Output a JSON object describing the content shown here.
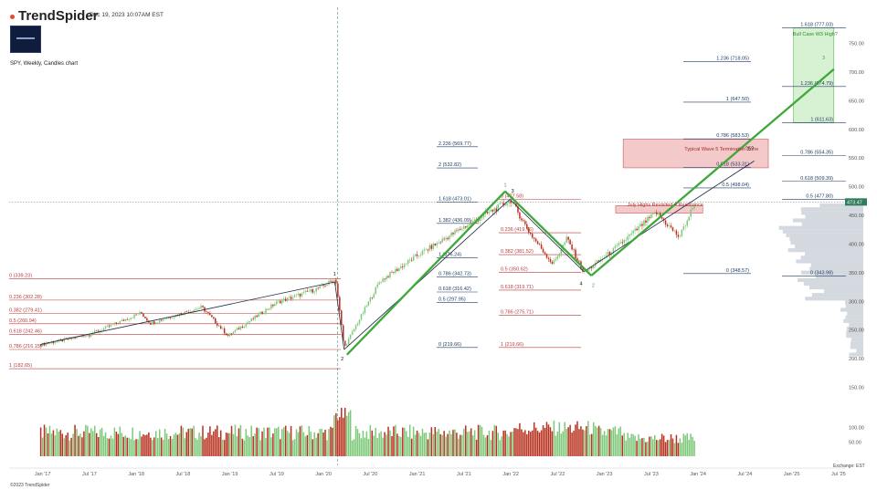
{
  "header": {
    "brand": "TrendSpider",
    "timestamp": "Dec 19, 2023 10:07AM EST",
    "symbol_line": "SPY, Weekly, Candles chart",
    "footer": "©2023 TrendSpider",
    "exchange": "Exchange: EST"
  },
  "colors": {
    "up": "#7ec879",
    "down": "#b8301e",
    "fib_red": "#b83a3a",
    "fib_blue": "#1f3b63",
    "wave": "#3ea83a",
    "zone_red": "#f2c4c4",
    "zone_green": "#d3f0cf",
    "profile": "#d4d9df"
  },
  "chart_data": {
    "type": "candlestick",
    "title": "",
    "x_ticks": [
      "Jan '17",
      "Jul '17",
      "Jan '18",
      "Jul '18",
      "Jan '19",
      "Jul '19",
      "Jan '20",
      "Jul '20",
      "Jan '21",
      "Jul '21",
      "Jan '22",
      "Jul '22",
      "Jan '23",
      "Jul '23",
      "Jan '24",
      "Jul '24",
      "Jan '25",
      "Jul '25"
    ],
    "y_ticks": [
      750,
      700,
      650,
      600,
      550,
      500,
      450,
      400,
      350,
      300,
      250,
      200,
      150
    ],
    "volume_ticks": [
      100,
      50
    ],
    "ylim": [
      175,
      778
    ],
    "last_price": "473.47",
    "price_path": [
      {
        "x": 2017.0,
        "y": 225
      },
      {
        "x": 2017.5,
        "y": 242
      },
      {
        "x": 2018.05,
        "y": 280
      },
      {
        "x": 2018.15,
        "y": 262
      },
      {
        "x": 2018.7,
        "y": 290
      },
      {
        "x": 2018.98,
        "y": 240
      },
      {
        "x": 2019.5,
        "y": 298
      },
      {
        "x": 2019.95,
        "y": 323
      },
      {
        "x": 2020.13,
        "y": 339
      },
      {
        "x": 2020.22,
        "y": 219
      },
      {
        "x": 2020.6,
        "y": 335
      },
      {
        "x": 2021.0,
        "y": 380
      },
      {
        "x": 2021.5,
        "y": 430
      },
      {
        "x": 2022.0,
        "y": 477
      },
      {
        "x": 2022.2,
        "y": 420
      },
      {
        "x": 2022.45,
        "y": 365
      },
      {
        "x": 2022.6,
        "y": 410
      },
      {
        "x": 2022.78,
        "y": 350
      },
      {
        "x": 2023.1,
        "y": 390
      },
      {
        "x": 2023.55,
        "y": 455
      },
      {
        "x": 2023.8,
        "y": 412
      },
      {
        "x": 2023.97,
        "y": 473
      }
    ],
    "fib_sets": [
      {
        "levels": [
          {
            "label": "0 (339.23)",
            "value": 339.23
          },
          {
            "label": "0.236 (302.28)",
            "value": 302.28
          },
          {
            "label": "0.382 (279.41)",
            "value": 279.41
          },
          {
            "label": "0.5 (260.94)",
            "value": 260.94
          },
          {
            "label": "0.618 (242.46)",
            "value": 242.46
          },
          {
            "label": "0.786 (216.15)",
            "value": 216.15
          },
          {
            "label": "1 (182.65)",
            "value": 182.65
          }
        ]
      },
      {
        "levels": [
          {
            "label": "2.236 (569.77)",
            "value": 569.77
          },
          {
            "label": "2 (532.82)",
            "value": 532.82
          },
          {
            "label": "1.618 (473.01)",
            "value": 473.01
          },
          {
            "label": "1.382 (436.09)",
            "value": 436.09
          },
          {
            "label": "1 (376.24)",
            "value": 376.24
          },
          {
            "label": "0.786 (342.73)",
            "value": 342.73
          },
          {
            "label": "0.618 (316.42)",
            "value": 316.42
          },
          {
            "label": "0.5 (297.95)",
            "value": 297.95
          },
          {
            "label": "0 (219.66)",
            "value": 219.66
          }
        ]
      },
      {
        "levels": [
          {
            "label": "0 (477.58)",
            "value": 477.58
          },
          {
            "label": "0.236 (419.76)",
            "value": 419.76
          },
          {
            "label": "0.382 (381.52)",
            "value": 381.52
          },
          {
            "label": "0.5 (350.62)",
            "value": 350.62
          },
          {
            "label": "0.618 (319.71)",
            "value": 319.71
          },
          {
            "label": "0.786 (275.71)",
            "value": 275.71
          },
          {
            "label": "1 (219.66)",
            "value": 219.66
          }
        ]
      },
      {
        "levels": [
          {
            "label": "1.236 (718.05)",
            "value": 718.05
          },
          {
            "label": "1 (647.50)",
            "value": 647.5
          },
          {
            "label": "0.786 (583.53)",
            "value": 583.53
          },
          {
            "label": "0.618 (533.31)",
            "value": 533.31
          },
          {
            "label": "0.5 (498.04)",
            "value": 498.04
          },
          {
            "label": "0 (348.57)",
            "value": 348.57
          }
        ]
      },
      {
        "levels": [
          {
            "label": "1.618 (777.03)",
            "value": 777.03
          },
          {
            "label": "1.236 (674.79)",
            "value": 674.79
          },
          {
            "label": "1 (611.63)",
            "value": 611.63
          },
          {
            "label": "0.786 (554.35)",
            "value": 554.35
          },
          {
            "label": "0.618 (509.39)",
            "value": 509.39
          },
          {
            "label": "0.5 (477.80)",
            "value": 477.8
          },
          {
            "label": "0 (343.98)",
            "value": 343.98
          }
        ]
      }
    ],
    "wave_labels": [
      {
        "text": "1",
        "x": 2020.12,
        "y": 345
      },
      {
        "text": "2",
        "x": 2020.2,
        "y": 197
      },
      {
        "text": "1",
        "x": 2021.94,
        "y": 500
      },
      {
        "text": "3",
        "x": 2022.02,
        "y": 490
      },
      {
        "text": "4",
        "x": 2022.75,
        "y": 328
      },
      {
        "text": "2",
        "x": 2022.88,
        "y": 325
      },
      {
        "text": "?5?",
        "x": 2024.55,
        "y": 564
      },
      {
        "text": "3",
        "x": 2025.34,
        "y": 722
      }
    ],
    "annotations": [
      {
        "text": "Typical Wave 5 Termination Zone",
        "x": 2024.25,
        "y": 563
      },
      {
        "text": "July Highs Revisited = Resistance",
        "x": 2023.65,
        "y": 466
      },
      {
        "text": "Bull Case W3 High?",
        "x": 2025.25,
        "y": 764
      }
    ],
    "zones": [
      {
        "name": "wave5-zone",
        "x0": 2023.2,
        "x1": 2024.75,
        "y0": 533,
        "y1": 583
      },
      {
        "name": "july-highs-zone",
        "x0": 2023.12,
        "x1": 2024.05,
        "y0": 454,
        "y1": 467
      },
      {
        "name": "bull-case-zone",
        "x0": 2025.02,
        "x1": 2025.45,
        "y0": 612,
        "y1": 777
      }
    ]
  }
}
